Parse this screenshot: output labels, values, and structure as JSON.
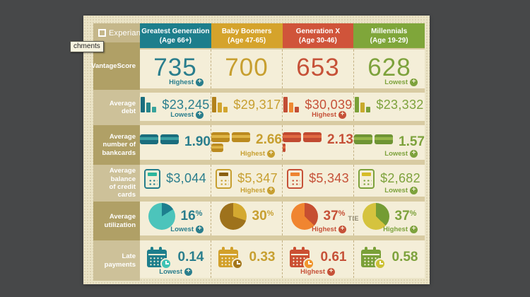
{
  "tooltip": {
    "text": "chments"
  },
  "brand": {
    "name": "Experian"
  },
  "table": {
    "columns": [
      {
        "name": "Greatest Generation",
        "age": "(Age 66+)",
        "palette": {
          "header": "#1d7e8c",
          "text": "#2a7e8d",
          "bars": [
            "#1b6e7f",
            "#27858a",
            "#3aa49c"
          ],
          "card_dark": "#1a6d7d",
          "card_light": "#3ba0a3",
          "calc_border": "#267e8c",
          "calc_screen": "#2cb79c",
          "pie_body": "#4cc4bb",
          "pie_slice": "#1d7f8e",
          "calendar": "#1d7e8c",
          "clock": "#3fc3b4"
        }
      },
      {
        "name": "Baby Boomers",
        "age": "(Age 47-65)",
        "palette": {
          "header": "#d5a32b",
          "text": "#c79f30",
          "bars": [
            "#b2811c",
            "#d2a52f",
            "#d2a52f"
          ],
          "card_dark": "#bb8a1f",
          "card_light": "#dfb545",
          "calc_border": "#c79f30",
          "calc_screen": "#8a5f12",
          "pie_body": "#9e721c",
          "pie_slice": "#d4a930",
          "calendar": "#d2a02a",
          "clock": "#a3761b"
        }
      },
      {
        "name": "Generation X",
        "age": "(Age 30-46)",
        "palette": {
          "header": "#d0543a",
          "text": "#c65138",
          "bars": [
            "#c24e35",
            "#ee8a33",
            "#c24e35"
          ],
          "card_dark": "#c14a31",
          "card_light": "#e06a42",
          "calc_border": "#c65138",
          "calc_screen": "#ee8430",
          "pie_body": "#f08530",
          "pie_slice": "#c64f31",
          "calendar": "#cb4f32",
          "clock": "#f0952e"
        }
      },
      {
        "name": "Millennials",
        "age": "(Age 19-29)",
        "palette": {
          "header": "#7fa63a",
          "text": "#7da23c",
          "bars": [
            "#7aa038",
            "#c8aa2c",
            "#7aa038"
          ],
          "card_dark": "#6f9434",
          "card_light": "#95b648",
          "calc_border": "#7da23c",
          "calc_screen": "#d6bb27",
          "pie_body": "#d5c33e",
          "pie_slice": "#749c34",
          "calendar": "#7aa038",
          "clock": "#ccc135"
        }
      }
    ],
    "rows": [
      {
        "label": "VantageScore",
        "type": "score",
        "cells": [
          {
            "value": "735",
            "badge": "Highest"
          },
          {
            "value": "700"
          },
          {
            "value": "653"
          },
          {
            "value": "628",
            "badge": "Lowest"
          }
        ]
      },
      {
        "label": "Average\ndebt",
        "type": "debt",
        "cells": [
          {
            "value": "$23,245",
            "badge": "Lowest"
          },
          {
            "value": "$29,317"
          },
          {
            "value": "$30,039",
            "badge": "Highest"
          },
          {
            "value": "$23,332"
          }
        ]
      },
      {
        "label": "Average\nnumber of\nbankcards",
        "type": "cards",
        "cells": [
          {
            "value": "1.90",
            "cards": 2,
            "partial": 0
          },
          {
            "value": "2.66",
            "cards": 2,
            "partial": 0.66,
            "badge": "Highest"
          },
          {
            "value": "2.13",
            "cards": 2,
            "partial": 0.13
          },
          {
            "value": "1.57",
            "cards": 2,
            "partial": 0,
            "badge": "Lowest"
          }
        ]
      },
      {
        "label": "Average\nbalance\nof credit\ncards",
        "type": "calc",
        "cells": [
          {
            "value": "$3,044"
          },
          {
            "value": "$5,347",
            "badge": "Highest"
          },
          {
            "value": "$5,343"
          },
          {
            "value": "$2,682",
            "badge": "Lowest"
          }
        ]
      },
      {
        "label": "Average\nutilization",
        "type": "pie",
        "cells": [
          {
            "value": "16%",
            "percent": 16,
            "badge": "Lowest"
          },
          {
            "value": "30%",
            "percent": 30
          },
          {
            "value": "37%",
            "percent": 37,
            "badge": "Highest",
            "note": "TIE"
          },
          {
            "value": "37%",
            "percent": 37,
            "badge": "Highest"
          }
        ]
      },
      {
        "label": "Late\npayments",
        "type": "late",
        "cells": [
          {
            "value": "0.14",
            "badge": "Lowest"
          },
          {
            "value": "0.33"
          },
          {
            "value": "0.61",
            "badge": "Highest"
          },
          {
            "value": "0.58"
          }
        ]
      }
    ]
  }
}
